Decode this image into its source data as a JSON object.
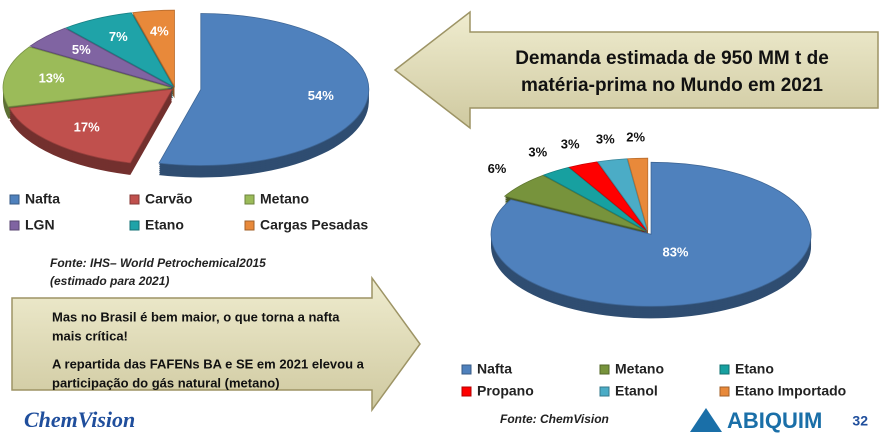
{
  "chart_data": [
    {
      "type": "pie",
      "categories": [
        "Nafta",
        "Carvão",
        "Metano",
        "LGN",
        "Etano",
        "Cargas Pesadas"
      ],
      "values": [
        54,
        17,
        13,
        5,
        7,
        4
      ],
      "value_labels": [
        "54%",
        "17%",
        "13%",
        "5%",
        "7%",
        "4%"
      ],
      "colors": [
        "#4f81bd",
        "#c0504d",
        "#9bbb59",
        "#8064a2",
        "#1fa3a8",
        "#e8893a"
      ],
      "source": [
        "Fonte: IHS– World Petrochemical2015",
        "(estimado para 2021)"
      ]
    },
    {
      "type": "pie",
      "categories": [
        "Nafta",
        "Metano",
        "Etano",
        "Propano",
        "Etanol",
        "Etano Importado"
      ],
      "values": [
        83,
        6,
        3,
        3,
        3,
        2
      ],
      "value_labels": [
        "83%",
        "6%",
        "3%",
        "3%",
        "3%",
        "2%"
      ],
      "colors": [
        "#4f81bd",
        "#77933c",
        "#17a0a0",
        "#ff0000",
        "#4bacc6",
        "#e8893a"
      ],
      "source": [
        "Fonte: ChemVision"
      ]
    }
  ],
  "headline": [
    "Demanda estimada de 950 MM t de",
    "matéria-prima no Mundo em 2021"
  ],
  "note": [
    "Mas no Brasil é bem maior, o que torna a nafta",
    "mais crítica!",
    "A repartida das FAFENs BA e SE em 2021 elevou a",
    "participação do gás natural (metano)"
  ],
  "logos": [
    "ChemVision",
    "ABIQUIM"
  ],
  "page": "32"
}
